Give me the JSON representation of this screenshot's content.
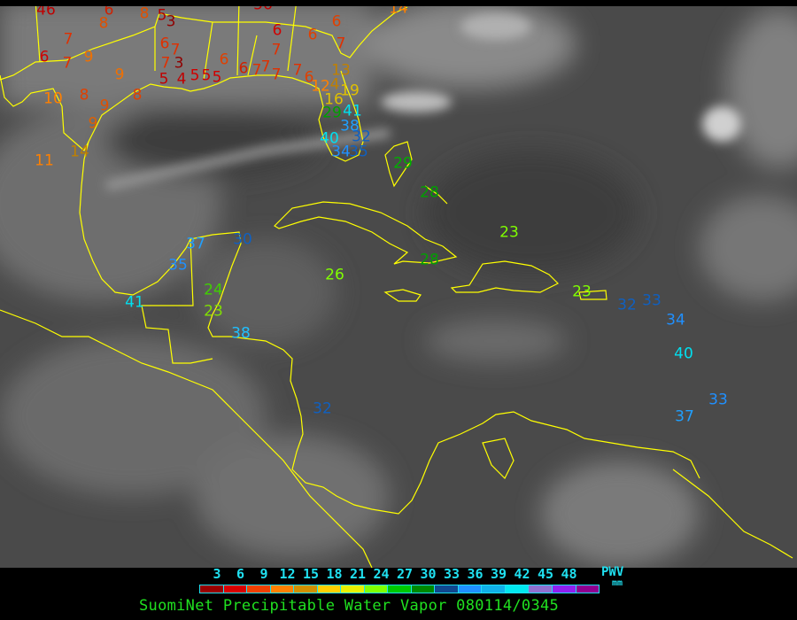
{
  "colors": {
    "coastline": "#ffff00",
    "legend_text": "#20e0f0",
    "title_text": "#20e020",
    "background": "#000000"
  },
  "legend": {
    "ticks": [
      "3",
      "6",
      "9",
      "12",
      "15",
      "18",
      "21",
      "24",
      "27",
      "30",
      "33",
      "36",
      "39",
      "42",
      "45",
      "48"
    ],
    "swatches": [
      "#990000",
      "#d80000",
      "#f04000",
      "#ff8000",
      "#d09000",
      "#ffd000",
      "#e8f000",
      "#80ff00",
      "#00c800",
      "#008800",
      "#104890",
      "#2090ff",
      "#10b0e8",
      "#00e8f0",
      "#9070d0",
      "#9020f0",
      "#900090"
    ],
    "unit_line1": "PWV",
    "unit_line2": "mm"
  },
  "title": "SuomiNet Precipitable Water Vapor 080114/0345",
  "stations": [
    {
      "v": "46",
      "c": "#c00000"
    },
    {
      "v": "6",
      "c": "#d02000"
    },
    {
      "v": "8",
      "c": "#e05000"
    },
    {
      "v": "8",
      "c": "#e05000"
    },
    {
      "v": "5",
      "c": "#b00000"
    },
    {
      "v": "3",
      "c": "#900000"
    },
    {
      "v": "7",
      "c": "#e03000"
    },
    {
      "v": "6",
      "c": "#d00000"
    },
    {
      "v": "7",
      "c": "#e03000"
    },
    {
      "v": "9",
      "c": "#f07000"
    },
    {
      "v": "9",
      "c": "#f07000"
    },
    {
      "v": "6",
      "c": "#e03000"
    },
    {
      "v": "7",
      "c": "#e03000"
    },
    {
      "v": "7",
      "c": "#e03000"
    },
    {
      "v": "3",
      "c": "#900000"
    },
    {
      "v": "10",
      "c": "#ff8000"
    },
    {
      "v": "8",
      "c": "#e04000"
    },
    {
      "v": "9",
      "c": "#e05000"
    },
    {
      "v": "5",
      "c": "#c00000"
    },
    {
      "v": "4",
      "c": "#c00000"
    },
    {
      "v": "5",
      "c": "#d00000"
    },
    {
      "v": "5",
      "c": "#d00000"
    },
    {
      "v": "5",
      "c": "#d00000"
    },
    {
      "v": "8",
      "c": "#e04000"
    },
    {
      "v": "9",
      "c": "#e06000"
    },
    {
      "v": "14",
      "c": "#c08000"
    },
    {
      "v": "11",
      "c": "#ff8000"
    },
    {
      "v": "6",
      "c": "#e04000"
    },
    {
      "v": "6",
      "c": "#d02000"
    },
    {
      "v": "7",
      "c": "#e03000"
    },
    {
      "v": "7",
      "c": "#e03000"
    },
    {
      "v": "7",
      "c": "#e03000"
    },
    {
      "v": "7",
      "c": "#e03000"
    },
    {
      "v": "6",
      "c": "#e04000"
    },
    {
      "v": "6",
      "c": "#d00000"
    },
    {
      "v": "7",
      "c": "#e03000"
    },
    {
      "v": "6",
      "c": "#e04000"
    },
    {
      "v": "6",
      "c": "#e04000"
    },
    {
      "v": "7",
      "c": "#e03000"
    },
    {
      "v": "13",
      "c": "#c08000"
    },
    {
      "v": "12",
      "c": "#ff8000"
    },
    {
      "v": "4",
      "c": "#c08000"
    },
    {
      "v": "19",
      "c": "#e0c000"
    },
    {
      "v": "16",
      "c": "#e0c000"
    },
    {
      "v": "29",
      "c": "#00a000"
    },
    {
      "v": "41",
      "c": "#00e0f0"
    },
    {
      "v": "38",
      "c": "#20a0ff"
    },
    {
      "v": "40",
      "c": "#00e0f0"
    },
    {
      "v": "32",
      "c": "#1060c0"
    },
    {
      "v": "34",
      "c": "#2090ff"
    },
    {
      "v": "35",
      "c": "#1060c0"
    },
    {
      "v": "56",
      "c": "#c00000"
    },
    {
      "v": "14",
      "c": "#ff8000"
    },
    {
      "v": "29",
      "c": "#00b000"
    },
    {
      "v": "28",
      "c": "#00a000"
    },
    {
      "v": "23",
      "c": "#80ff00"
    },
    {
      "v": "37",
      "c": "#20a0ff"
    },
    {
      "v": "30",
      "c": "#1060c0"
    },
    {
      "v": "35",
      "c": "#2090ff"
    },
    {
      "v": "41",
      "c": "#00e0f0"
    },
    {
      "v": "24",
      "c": "#40d000"
    },
    {
      "v": "23",
      "c": "#80e000"
    },
    {
      "v": "26",
      "c": "#80ff00"
    },
    {
      "v": "28",
      "c": "#00a000"
    },
    {
      "v": "38",
      "c": "#20c0ff"
    },
    {
      "v": "32",
      "c": "#1060c0"
    },
    {
      "v": "23",
      "c": "#80ff00"
    },
    {
      "v": "32",
      "c": "#1060c0"
    },
    {
      "v": "33",
      "c": "#1060c0"
    },
    {
      "v": "34",
      "c": "#2090ff"
    },
    {
      "v": "40",
      "c": "#00e0f0"
    },
    {
      "v": "33",
      "c": "#2090ff"
    },
    {
      "v": "37",
      "c": "#20a0ff"
    }
  ]
}
